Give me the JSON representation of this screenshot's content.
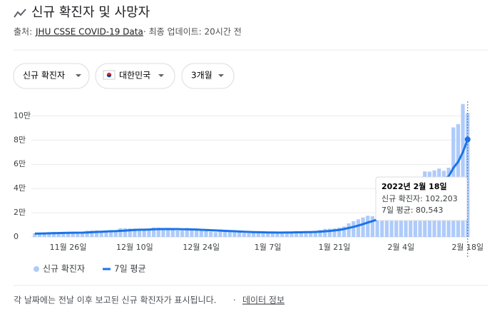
{
  "header": {
    "title": "신규 확진자 및 사망자",
    "source_label": "출처:",
    "source_link": "JHU CSSE COVID-19 Data",
    "updated": "· 최종 업데이트: 20시간 전"
  },
  "filters": [
    "신규 확진자",
    "대한민국",
    "3개월"
  ],
  "chart_data": {
    "type": "bar",
    "categories": [
      null,
      null,
      null,
      null,
      null,
      null,
      null,
      "11월 26일",
      null,
      null,
      null,
      null,
      null,
      null,
      null,
      null,
      null,
      null,
      null,
      null,
      null,
      "12월 10일",
      null,
      null,
      null,
      null,
      null,
      null,
      null,
      null,
      null,
      null,
      null,
      null,
      null,
      "12월 24일",
      null,
      null,
      null,
      null,
      null,
      null,
      null,
      null,
      null,
      null,
      null,
      null,
      null,
      "1월 7일",
      null,
      null,
      null,
      null,
      null,
      null,
      null,
      null,
      null,
      null,
      null,
      null,
      null,
      "1월 21일",
      null,
      null,
      null,
      null,
      null,
      null,
      null,
      null,
      null,
      null,
      null,
      null,
      null,
      "2월 4일",
      null,
      null,
      null,
      null,
      null,
      null,
      null,
      null,
      null,
      null,
      null,
      null,
      null,
      "2월 18일"
    ],
    "series": [
      {
        "name": "신규 확진자",
        "type": "bar",
        "color": "#aecbfa",
        "values": [
          3034,
          3205,
          3120,
          2827,
          4115,
          4116,
          3938,
          3899,
          3411,
          3309,
          3032,
          5123,
          5266,
          5352,
          4944,
          5128,
          4325,
          4954,
          7175,
          7102,
          7022,
          6977,
          6689,
          5817,
          5567,
          7850,
          7622,
          7435,
          7314,
          6236,
          5318,
          5202,
          7456,
          6919,
          6233,
          5842,
          5419,
          4207,
          3865,
          5409,
          5037,
          4875,
          4416,
          3833,
          3129,
          3022,
          4443,
          4126,
          3714,
          3511,
          3376,
          3007,
          3097,
          4387,
          4167,
          4542,
          4423,
          4193,
          3858,
          4071,
          5804,
          6603,
          6769,
          7009,
          7630,
          8571,
          11235,
          13010,
          14518,
          16096,
          17542,
          17079,
          17528,
          18342,
          20270,
          22907,
          27443,
          36362,
          38691,
          35286,
          38691,
          49567,
          54121,
          53926,
          54941,
          56431,
          54619,
          57177,
          90443,
          93135,
          109831,
          102203
        ]
      },
      {
        "name": "7일 평균",
        "type": "line",
        "color": "#1a73e8",
        "values": [
          2700,
          2800,
          2900,
          3000,
          3100,
          3200,
          3300,
          3400,
          3450,
          3500,
          3550,
          3700,
          3900,
          4100,
          4300,
          4500,
          4700,
          4800,
          5000,
          5250,
          5500,
          5750,
          5950,
          6000,
          6100,
          6300,
          6450,
          6500,
          6550,
          6500,
          6450,
          6350,
          6300,
          6200,
          6100,
          5900,
          5750,
          5550,
          5400,
          5200,
          5000,
          4850,
          4700,
          4500,
          4300,
          4150,
          4000,
          3900,
          3800,
          3700,
          3650,
          3600,
          3600,
          3650,
          3700,
          3800,
          3850,
          3950,
          4000,
          4150,
          4350,
          4650,
          4950,
          5350,
          5800,
          6500,
          7400,
          8300,
          9400,
          10600,
          11900,
          13100,
          14400,
          15600,
          16500,
          17500,
          19400,
          22100,
          24400,
          26600,
          29500,
          33200,
          38100,
          41900,
          44200,
          46600,
          48000,
          50000,
          57000,
          62000,
          70000,
          80543
        ]
      }
    ],
    "ylim": [
      0,
      112000
    ],
    "yticks": [
      0,
      {
        "value": 20000,
        "label": "2만"
      },
      {
        "value": 40000,
        "label": "4만"
      },
      {
        "value": 60000,
        "label": "6만"
      },
      {
        "value": 80000,
        "label": "8만"
      },
      {
        "value": 100000,
        "label": "10만"
      }
    ],
    "grid": true,
    "tooltip": {
      "title": "2022년 2월 18일",
      "lines": [
        "신규 확진자: 102,203",
        "7일 평균: 80,543"
      ]
    }
  },
  "footer": {
    "note": "각 날짜에는 전날 이후 보고된 신규 확진자가 표시됩니다.",
    "separator": "·",
    "link": "데이터 정보"
  }
}
